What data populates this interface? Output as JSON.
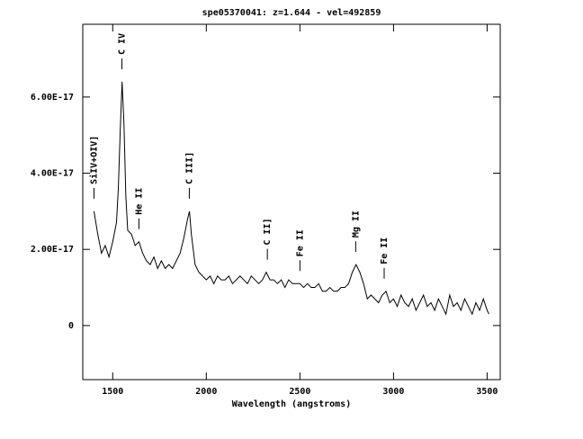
{
  "chart_data": {
    "type": "line",
    "title": "spe05370041: z=1.644 - vel=492859",
    "x_label": "Wavelength (angstroms)",
    "x": [
      1400,
      1420,
      1440,
      1460,
      1480,
      1500,
      1520,
      1530,
      1540,
      1550,
      1560,
      1570,
      1580,
      1600,
      1620,
      1640,
      1660,
      1680,
      1700,
      1720,
      1740,
      1760,
      1780,
      1800,
      1820,
      1840,
      1860,
      1880,
      1900,
      1910,
      1920,
      1940,
      1960,
      1980,
      2000,
      2020,
      2040,
      2060,
      2080,
      2100,
      2120,
      2140,
      2160,
      2180,
      2200,
      2220,
      2240,
      2260,
      2280,
      2300,
      2320,
      2340,
      2360,
      2380,
      2400,
      2420,
      2440,
      2460,
      2480,
      2500,
      2520,
      2540,
      2560,
      2580,
      2600,
      2620,
      2640,
      2660,
      2680,
      2700,
      2720,
      2740,
      2760,
      2780,
      2800,
      2820,
      2840,
      2860,
      2880,
      2900,
      2920,
      2940,
      2960,
      2980,
      3000,
      3020,
      3040,
      3060,
      3080,
      3100,
      3120,
      3140,
      3160,
      3180,
      3200,
      3220,
      3240,
      3260,
      3280,
      3300,
      3320,
      3340,
      3360,
      3380,
      3400,
      3420,
      3440,
      3460,
      3480,
      3500,
      3510
    ],
    "values": [
      3e-17,
      2.4e-17,
      1.9e-17,
      2.1e-17,
      1.8e-17,
      2.2e-17,
      2.7e-17,
      3.6e-17,
      5.1e-17,
      6.4e-17,
      5.3e-17,
      3.4e-17,
      2.5e-17,
      2.4e-17,
      2.1e-17,
      2.2e-17,
      1.9e-17,
      1.7e-17,
      1.6e-17,
      1.8e-17,
      1.5e-17,
      1.7e-17,
      1.5e-17,
      1.6e-17,
      1.5e-17,
      1.7e-17,
      1.9e-17,
      2.3e-17,
      2.8e-17,
      3e-17,
      2.4e-17,
      1.6e-17,
      1.4e-17,
      1.3e-17,
      1.2e-17,
      1.3e-17,
      1.1e-17,
      1.3e-17,
      1.2e-17,
      1.2e-17,
      1.3e-17,
      1.1e-17,
      1.2e-17,
      1.3e-17,
      1.2e-17,
      1.1e-17,
      1.3e-17,
      1.2e-17,
      1.1e-17,
      1.2e-17,
      1.4e-17,
      1.2e-17,
      1.2e-17,
      1.1e-17,
      1.2e-17,
      1e-17,
      1.2e-17,
      1.1e-17,
      1.1e-17,
      1.1e-17,
      1e-17,
      1.1e-17,
      1e-17,
      1e-17,
      1.1e-17,
      9e-18,
      9e-18,
      1e-17,
      9e-18,
      9e-18,
      1e-17,
      1e-17,
      1.1e-17,
      1.4e-17,
      1.6e-17,
      1.4e-17,
      1.1e-17,
      7e-18,
      8e-18,
      7e-18,
      6e-18,
      8e-18,
      9e-18,
      6e-18,
      7e-18,
      5e-18,
      8e-18,
      6e-18,
      5e-18,
      7e-18,
      4e-18,
      6e-18,
      8e-18,
      5e-18,
      6e-18,
      4e-18,
      7e-18,
      5e-18,
      3e-18,
      8e-18,
      5e-18,
      6e-18,
      4e-18,
      7e-18,
      5e-18,
      3e-18,
      6e-18,
      4e-18,
      7e-18,
      4e-18,
      3e-18
    ],
    "color": "#000000",
    "xlim": [
      1340,
      3570
    ],
    "ylim": [
      -1.42e-17,
      7.91e-17
    ],
    "xticks": [
      1500,
      2000,
      2500,
      3000,
      3500
    ],
    "yticks": [
      0,
      {
        "value": 2e-17,
        "label": "2.00E-17"
      },
      {
        "value": 4e-17,
        "label": "4.00E-17"
      },
      {
        "value": 6e-17,
        "label": "6.00E-17"
      }
    ],
    "annotations": [
      {
        "text": "SiIV+OIV]",
        "x": 1400
      },
      {
        "text": "C IV",
        "x": 1549
      },
      {
        "text": "He II",
        "x": 1640
      },
      {
        "text": "C III]",
        "x": 1909
      },
      {
        "text": "C II]",
        "x": 2326
      },
      {
        "text": "Fe II",
        "x": 2500
      },
      {
        "text": "Mg II",
        "x": 2798
      },
      {
        "text": "Fe II",
        "x": 2950
      }
    ]
  }
}
